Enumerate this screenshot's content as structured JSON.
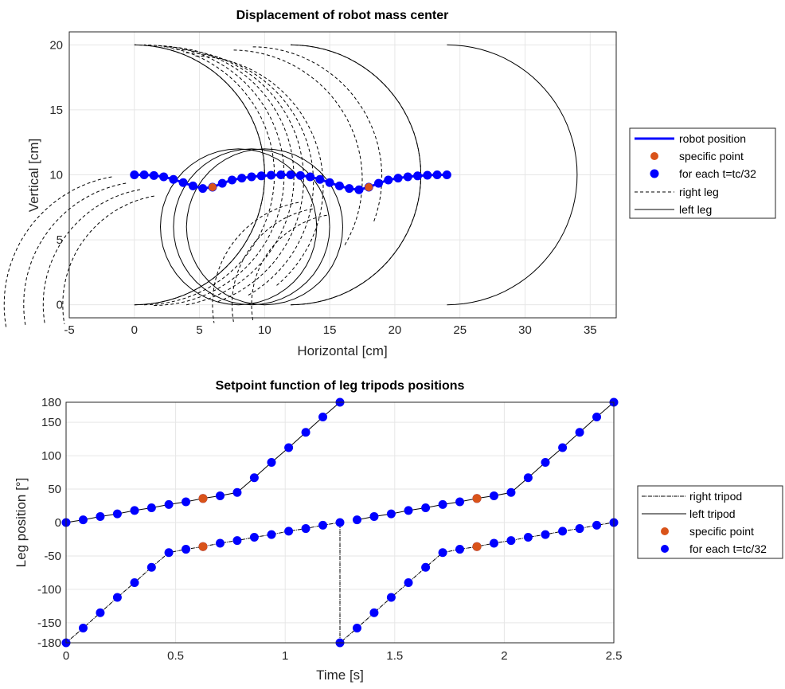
{
  "colors": {
    "robot": "#0000ff",
    "specific": "#d95319",
    "blue_dot": "#0000ff",
    "leg_line": "#000000",
    "grid": "#e6e6e6"
  },
  "chart_data": [
    {
      "type": "line",
      "title": "Displacement of robot mass center",
      "xlabel": "Horizontal [cm]",
      "ylabel": "Vertical [cm]",
      "xlim": [
        -5,
        37
      ],
      "ylim": [
        -1,
        21
      ],
      "xticks": [
        "-5",
        "0",
        "5",
        "10",
        "15",
        "20",
        "25",
        "30",
        "35"
      ],
      "yticks": [
        "0",
        "5",
        "10",
        "15",
        "20"
      ],
      "grid": true,
      "legend_position": "right",
      "legend": [
        "robot position",
        "specific point",
        "for each t=tc/32",
        "right leg",
        "left leg"
      ],
      "series": [
        {
          "name": "robot position",
          "x": [
            0,
            0.75,
            1.5,
            2.25,
            3.0,
            3.75,
            4.5,
            5.25,
            6,
            6.75,
            7.5,
            8.25,
            9.0,
            9.75,
            10.5,
            11.25,
            12,
            12.75,
            13.5,
            14.25,
            15,
            15.75,
            16.5,
            17.25,
            18,
            18.75,
            19.5,
            20.25,
            21,
            21.75,
            22.5,
            23.25,
            24
          ],
          "y": [
            10,
            10,
            9.95,
            9.85,
            9.65,
            9.4,
            9.15,
            8.95,
            9.05,
            9.35,
            9.6,
            9.75,
            9.85,
            9.92,
            9.97,
            10,
            10,
            9.95,
            9.85,
            9.65,
            9.4,
            9.15,
            8.95,
            8.85,
            9.05,
            9.35,
            9.6,
            9.75,
            9.85,
            9.92,
            9.97,
            10,
            10
          ]
        },
        {
          "name": "specific point",
          "x": [
            6,
            18
          ],
          "y": [
            9.05,
            9.05
          ]
        },
        {
          "name": "for each t=tc/32",
          "x": [
            0,
            0.75,
            1.5,
            2.25,
            3.0,
            3.75,
            4.5,
            5.25,
            6,
            6.75,
            7.5,
            8.25,
            9.0,
            9.75,
            10.5,
            11.25,
            12,
            12.75,
            13.5,
            14.25,
            15,
            15.75,
            16.5,
            17.25,
            18,
            18.75,
            19.5,
            20.25,
            21,
            21.75,
            22.5,
            23.25,
            24
          ],
          "y": [
            10,
            10,
            9.95,
            9.85,
            9.65,
            9.4,
            9.15,
            8.95,
            9.05,
            9.35,
            9.6,
            9.75,
            9.85,
            9.92,
            9.97,
            10,
            10,
            9.95,
            9.85,
            9.65,
            9.4,
            9.15,
            8.95,
            8.85,
            9.05,
            9.35,
            9.6,
            9.75,
            9.85,
            9.92,
            9.97,
            10,
            10
          ]
        },
        {
          "name": "right leg",
          "style": "dashed",
          "arcs": [
            {
              "cx": 0,
              "cy": 10,
              "r": 10,
              "a0": -90,
              "a1": 90
            },
            {
              "cx": 0.75,
              "cy": 10,
              "r": 10,
              "a0": -90,
              "a1": 90
            },
            {
              "cx": 1.5,
              "cy": 9.95,
              "r": 10,
              "a0": -90,
              "a1": 90
            },
            {
              "cx": 2.25,
              "cy": 9.85,
              "r": 10,
              "a0": -80,
              "a1": 90
            },
            {
              "cx": 3.0,
              "cy": 9.65,
              "r": 10,
              "a0": -70,
              "a1": 90
            },
            {
              "cx": 3.75,
              "cy": 9.4,
              "r": 10,
              "a0": -60,
              "a1": 90
            },
            {
              "cx": 4.5,
              "cy": 9.15,
              "r": 10,
              "a0": -50,
              "a1": 90
            },
            {
              "cx": 7.5,
              "cy": 9.6,
              "r": 10,
              "a0": -30,
              "a1": 90
            },
            {
              "cx": 9.0,
              "cy": 9.85,
              "r": 10,
              "a0": -20,
              "a1": 90
            },
            {
              "cx": 12.0,
              "cy": 10,
              "r": 10,
              "a0": -90,
              "a1": 90
            },
            {
              "cx": 0,
              "cy": 0,
              "r": 10,
              "a0": 100,
              "a1": 190
            },
            {
              "cx": 1,
              "cy": 0,
              "r": 9.5,
              "a0": 100,
              "a1": 190
            },
            {
              "cx": 2,
              "cy": 0,
              "r": 9,
              "a0": 100,
              "a1": 190
            },
            {
              "cx": 3,
              "cy": 0,
              "r": 8.5,
              "a0": 100,
              "a1": 190
            },
            {
              "cx": 14,
              "cy": 0,
              "r": 8,
              "a0": 100,
              "a1": 190
            },
            {
              "cx": 15,
              "cy": 0,
              "r": 7.5,
              "a0": 100,
              "a1": 190
            },
            {
              "cx": 16,
              "cy": 0,
              "r": 7,
              "a0": 100,
              "a1": 190
            }
          ]
        },
        {
          "name": "left leg",
          "style": "solid",
          "arcs": [
            {
              "cx": 0,
              "cy": 10,
              "r": 10,
              "a0": -90,
              "a1": 90
            },
            {
              "cx": 12,
              "cy": 10,
              "r": 10,
              "a0": -90,
              "a1": 90
            },
            {
              "cx": 24,
              "cy": 10,
              "r": 10,
              "a0": -90,
              "a1": 90
            },
            {
              "cx": 8,
              "cy": 6,
              "r": 6,
              "a0": 0,
              "a1": 360
            },
            {
              "cx": 9,
              "cy": 6,
              "r": 6,
              "a0": 0,
              "a1": 360
            },
            {
              "cx": 10,
              "cy": 6,
              "r": 6,
              "a0": 0,
              "a1": 360
            }
          ]
        }
      ]
    },
    {
      "type": "line",
      "title": "Setpoint function of leg tripods positions",
      "xlabel": "Time [s]",
      "ylabel": "Leg position [°]",
      "xlim": [
        0,
        2.5
      ],
      "ylim": [
        -180,
        180
      ],
      "xticks": [
        "0",
        "0.5",
        "1",
        "1.5",
        "2",
        "2.5"
      ],
      "yticks": [
        "-180",
        "-150",
        "-100",
        "-50",
        "0",
        "50",
        "100",
        "150",
        "180"
      ],
      "grid": true,
      "legend_position": "right",
      "legend": [
        "right tripod",
        "left tripod",
        "specific point",
        "for each t=tc/32"
      ],
      "series": [
        {
          "name": "right tripod",
          "style": "dashdot",
          "x": [
            0,
            0.078,
            0.156,
            0.234,
            0.3125,
            0.39,
            0.469,
            0.547,
            0.625,
            0.703,
            0.781,
            0.859,
            0.9375,
            1.016,
            1.094,
            1.172,
            1.25,
            1.25,
            1.328,
            1.406,
            1.484,
            1.5625,
            1.641,
            1.719,
            1.797,
            1.875,
            1.953,
            2.031,
            2.109,
            2.1875,
            2.266,
            2.344,
            2.422,
            2.5
          ],
          "y": [
            -180,
            -158,
            -135,
            -112,
            -90,
            -67,
            -45,
            -40,
            -36,
            -31,
            -27,
            -22,
            -18,
            -13,
            -9,
            -4,
            0,
            -180,
            -158,
            -135,
            -112,
            -90,
            -67,
            -45,
            -40,
            -36,
            -31,
            -27,
            -22,
            -18,
            -13,
            -9,
            -4,
            0
          ]
        },
        {
          "name": "left tripod",
          "style": "solid",
          "x": [
            0,
            0.078,
            0.156,
            0.234,
            0.3125,
            0.39,
            0.469,
            0.547,
            0.625,
            0.703,
            0.781,
            0.859,
            0.9375,
            1.016,
            1.094,
            1.172,
            1.25,
            1.328,
            1.406,
            1.484,
            1.5625,
            1.641,
            1.719,
            1.797,
            1.875,
            1.953,
            2.031,
            2.109,
            2.1875,
            2.266,
            2.344,
            2.422,
            2.5
          ],
          "y": [
            0,
            4,
            9,
            13,
            18,
            22,
            27,
            31,
            36,
            40,
            45,
            67,
            90,
            112,
            135,
            158,
            180,
            4,
            9,
            13,
            18,
            22,
            27,
            31,
            36,
            40,
            45,
            67,
            90,
            112,
            135,
            158,
            180
          ]
        },
        {
          "name": "specific point",
          "x": [
            0.625,
            0.625,
            1.875,
            1.875
          ],
          "y": [
            36,
            -36,
            36,
            -36
          ]
        },
        {
          "name": "for each t=tc/32",
          "note_from": "right tripod + left tripod markers"
        }
      ]
    }
  ]
}
